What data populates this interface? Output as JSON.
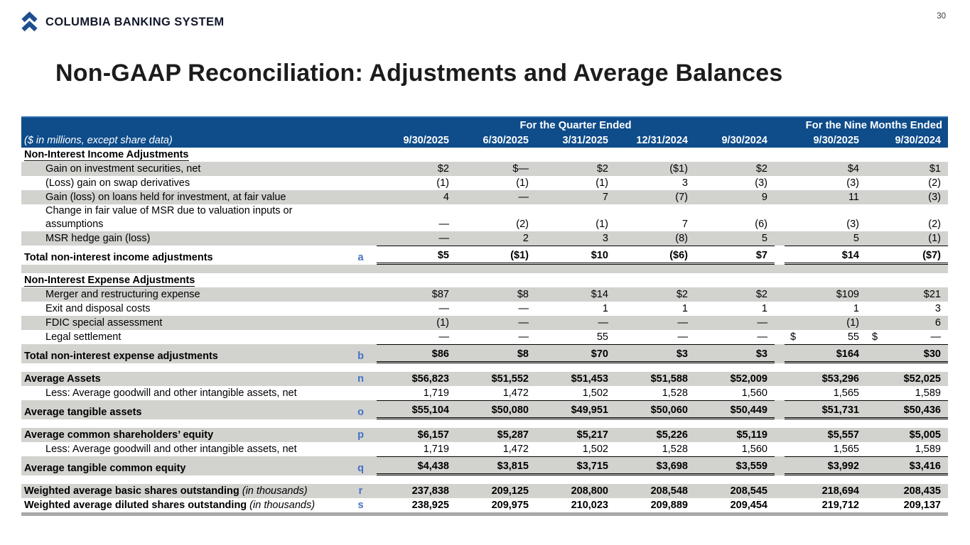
{
  "header": {
    "brand": "COLUMBIA BANKING SYSTEM",
    "logo_icon": "double-chevron-up-icon",
    "page_number": "30"
  },
  "title": "Non-GAAP Reconciliation: Adjustments and Average Balances",
  "colors": {
    "header_bg": "#0e4c8a",
    "stripe": "#d2d2cf",
    "ref_blue": "#4472c4",
    "logo_blue": "#1d4f8f"
  },
  "table": {
    "units_note": "($ in millions, except share data)",
    "column_groups": [
      {
        "label": "For the Quarter Ended",
        "span": 5
      },
      {
        "label": "For the Nine Months Ended",
        "span": 2
      }
    ],
    "columns": [
      "9/30/2025",
      "6/30/2025",
      "3/31/2025",
      "12/31/2024",
      "9/30/2024",
      "9/30/2025",
      "9/30/2024"
    ],
    "rows": [
      {
        "type": "section",
        "bg": "white",
        "label": "Non-Interest Income Adjustments"
      },
      {
        "type": "data",
        "bg": "gray",
        "indent": true,
        "label": "Gain on investment securities, net",
        "values": [
          "$2",
          "$—",
          "$2",
          "($1)",
          "$2",
          "$4",
          "$1"
        ]
      },
      {
        "type": "data",
        "bg": "white",
        "indent": true,
        "label": "(Loss) gain on swap derivatives",
        "values": [
          "(1)",
          "(1)",
          "(1)",
          "3",
          "(3)",
          "(3)",
          "(2)"
        ]
      },
      {
        "type": "data",
        "bg": "gray",
        "indent": true,
        "label": "Gain (loss) on loans held for investment, at fair value",
        "values": [
          "4",
          "—",
          "7",
          "(7)",
          "9",
          "11",
          "(3)"
        ]
      },
      {
        "type": "data",
        "bg": "white",
        "indent": true,
        "label": "Change in fair value of MSR due to valuation inputs or assumptions",
        "values": [
          "—",
          "(2)",
          "(1)",
          "7",
          "(6)",
          "(3)",
          "(2)"
        ]
      },
      {
        "type": "data",
        "bg": "gray",
        "indent": true,
        "label": "MSR hedge gain (loss)",
        "values": [
          "—",
          "2",
          "3",
          "(8)",
          "5",
          "5",
          "(1)"
        ]
      },
      {
        "type": "total",
        "bg": "white",
        "label": "Total non-interest income adjustments",
        "ref": "a",
        "values": [
          "$5",
          "($1)",
          "$10",
          "($6)",
          "$7",
          "$14",
          "($7)"
        ]
      },
      {
        "type": "spacer",
        "bg": "gray"
      },
      {
        "type": "section",
        "bg": "white",
        "label": "Non-Interest Expense Adjustments"
      },
      {
        "type": "data",
        "bg": "gray",
        "indent": true,
        "label": "Merger and restructuring expense",
        "values": [
          "$87",
          "$8",
          "$14",
          "$2",
          "$2",
          "$109",
          "$21"
        ]
      },
      {
        "type": "data",
        "bg": "white",
        "indent": true,
        "label": "Exit and disposal costs",
        "values": [
          "—",
          "—",
          "1",
          "1",
          "1",
          "1",
          "3"
        ]
      },
      {
        "type": "data",
        "bg": "gray",
        "indent": true,
        "label": "FDIC special assessment",
        "values": [
          "(1)",
          "—",
          "—",
          "—",
          "—",
          "(1)",
          "6"
        ]
      },
      {
        "type": "data",
        "bg": "white",
        "indent": true,
        "label": "Legal settlement",
        "values": [
          "—",
          "—",
          "55",
          "—",
          "—",
          {
            "pre": "$",
            "v": "55"
          },
          {
            "pre": "$",
            "v": "—"
          }
        ]
      },
      {
        "type": "total",
        "bg": "gray",
        "label": "Total non-interest expense adjustments",
        "ref": "b",
        "values": [
          "$86",
          "$8",
          "$70",
          "$3",
          "$3",
          "$164",
          "$30"
        ]
      },
      {
        "type": "spacer",
        "bg": "white"
      },
      {
        "type": "metric",
        "bg": "gray",
        "label": "Average Assets",
        "ref": "n",
        "values": [
          "$56,823",
          "$51,552",
          "$51,453",
          "$51,588",
          "$52,009",
          "$53,296",
          "$52,025"
        ]
      },
      {
        "type": "data",
        "bg": "white",
        "indent": true,
        "label": "Less: Average goodwill and other intangible assets, net",
        "values": [
          "1,719",
          "1,472",
          "1,502",
          "1,528",
          "1,560",
          "1,565",
          "1,589"
        ]
      },
      {
        "type": "total",
        "bg": "gray",
        "label": "Average tangible assets",
        "ref": "o",
        "values": [
          "$55,104",
          "$50,080",
          "$49,951",
          "$50,060",
          "$50,449",
          "$51,731",
          "$50,436"
        ]
      },
      {
        "type": "spacer",
        "bg": "white"
      },
      {
        "type": "metric",
        "bg": "gray",
        "label": "Average common shareholders’ equity",
        "ref": "p",
        "values": [
          "$6,157",
          "$5,287",
          "$5,217",
          "$5,226",
          "$5,119",
          "$5,557",
          "$5,005"
        ]
      },
      {
        "type": "data",
        "bg": "white",
        "indent": true,
        "label": "Less: Average goodwill and other intangible assets, net",
        "values": [
          "1,719",
          "1,472",
          "1,502",
          "1,528",
          "1,560",
          "1,565",
          "1,589"
        ]
      },
      {
        "type": "total",
        "bg": "gray",
        "label": "Average tangible common equity",
        "ref": "q",
        "values": [
          "$4,438",
          "$3,815",
          "$3,715",
          "$3,698",
          "$3,559",
          "$3,992",
          "$3,416"
        ]
      },
      {
        "type": "spacer",
        "bg": "white"
      },
      {
        "type": "metric",
        "bg": "gray",
        "label": "Weighted average basic shares outstanding",
        "suffix": "(in thousands)",
        "ref": "r",
        "values": [
          "237,838",
          "209,125",
          "208,800",
          "208,548",
          "208,545",
          "218,694",
          "208,435"
        ]
      },
      {
        "type": "metric",
        "bg": "white",
        "label": "Weighted average diluted shares outstanding",
        "suffix": "(in thousands)",
        "ref": "s",
        "values": [
          "238,925",
          "209,975",
          "210,023",
          "209,889",
          "209,454",
          "219,712",
          "209,137"
        ]
      }
    ]
  }
}
